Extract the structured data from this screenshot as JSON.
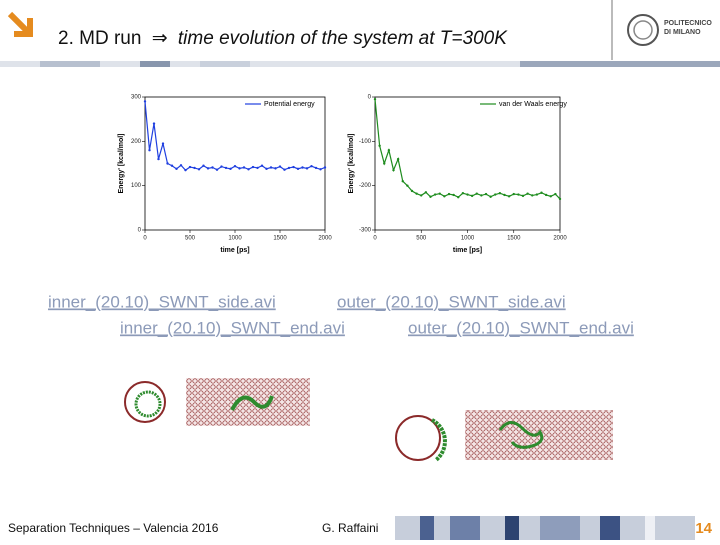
{
  "header": {
    "lead": "2. MD run",
    "symbol": "⇒",
    "rest": "time evolution of the system at T=300K"
  },
  "logo": {
    "line1": "POLITECNICO",
    "line2": "DI MILANO"
  },
  "chart_data": [
    {
      "type": "line",
      "ylabel": "Energy' [kcal/mol]",
      "xlabel": "time [ps]",
      "xlim": [
        0,
        2000
      ],
      "xticks": [
        0,
        500,
        1000,
        1500,
        2000
      ],
      "ylim": [
        0,
        300
      ],
      "yticks": [
        0,
        100,
        200,
        300
      ],
      "legend": "upper right",
      "series": [
        {
          "name": "Potential energy",
          "color": "#1f3fe0",
          "x": [
            0,
            50,
            100,
            150,
            200,
            250,
            300,
            350,
            400,
            450,
            500,
            550,
            600,
            650,
            700,
            750,
            800,
            850,
            900,
            950,
            1000,
            1050,
            1100,
            1150,
            1200,
            1250,
            1300,
            1350,
            1400,
            1450,
            1500,
            1550,
            1600,
            1650,
            1700,
            1750,
            1800,
            1850,
            1900,
            1950,
            2000
          ],
          "values": [
            290,
            180,
            240,
            160,
            195,
            150,
            145,
            138,
            146,
            135,
            142,
            140,
            137,
            145,
            139,
            141,
            136,
            143,
            140,
            138,
            144,
            139,
            141,
            137,
            142,
            140,
            145,
            138,
            141,
            139,
            143,
            136,
            140,
            142,
            138,
            141,
            139,
            144,
            140,
            137,
            141
          ]
        }
      ]
    },
    {
      "type": "line",
      "ylabel": "Energy' [kcal/mol]",
      "xlabel": "time [ps]",
      "xlim": [
        0,
        2000
      ],
      "xticks": [
        0,
        500,
        1000,
        1500,
        2000
      ],
      "ylim": [
        -300,
        0
      ],
      "yticks": [
        -300,
        -200,
        -100,
        0
      ],
      "legend": "upper right",
      "series": [
        {
          "name": "van der Waals energy",
          "color": "#1e8c1e",
          "x": [
            0,
            50,
            100,
            150,
            200,
            250,
            300,
            350,
            400,
            450,
            500,
            550,
            600,
            650,
            700,
            750,
            800,
            850,
            900,
            950,
            1000,
            1050,
            1100,
            1150,
            1200,
            1250,
            1300,
            1350,
            1400,
            1450,
            1500,
            1550,
            1600,
            1650,
            1700,
            1750,
            1800,
            1850,
            1900,
            1950,
            2000
          ],
          "values": [
            -5,
            -110,
            -150,
            -120,
            -165,
            -140,
            -190,
            -200,
            -212,
            -218,
            -222,
            -215,
            -225,
            -220,
            -218,
            -224,
            -219,
            -221,
            -226,
            -217,
            -220,
            -223,
            -218,
            -222,
            -219,
            -225,
            -220,
            -217,
            -221,
            -224,
            -219,
            -220,
            -223,
            -218,
            -222,
            -220,
            -216,
            -221,
            -224,
            -219,
            -230
          ]
        }
      ]
    }
  ],
  "links": [
    "inner_(20.10)_SWNT_side.avi",
    "outer_(20.10)_SWNT_side.avi",
    "inner_(20.10)_SWNT_end.avi",
    "outer_(20.10)_SWNT_end.avi"
  ],
  "footer": {
    "left": "Separation Techniques – Valencia 2016",
    "center": "G. Raffaini",
    "page": "14"
  }
}
